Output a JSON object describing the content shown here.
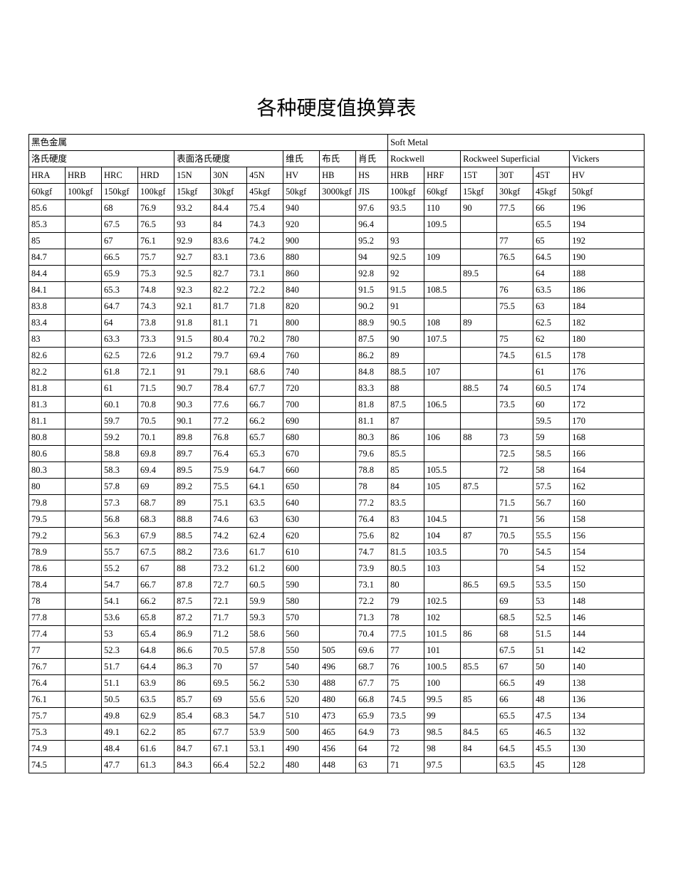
{
  "title": "各种硬度值换算表",
  "colors": {
    "background": "#ffffff",
    "text": "#000000",
    "border": "#000000"
  },
  "typography": {
    "title_fontsize_pt": 21,
    "body_fontsize_pt": 9.5,
    "font_family": "SimSun"
  },
  "header": {
    "row1": {
      "left": "黑色金属",
      "right": "Soft    Metal"
    },
    "row2": [
      "洛氏硬度",
      "表面洛氏硬度",
      "维氏",
      "布氏",
      "肖氏",
      "Rockwell",
      "Rockweel Superficial",
      "Vickers"
    ],
    "row3": [
      "HRA",
      "HRB",
      "HRC",
      "HRD",
      "15N",
      "30N",
      "45N",
      "HV",
      "HB",
      "HS",
      "HRB",
      "HRF",
      "15T",
      "30T",
      "45T",
      "HV"
    ],
    "row4": [
      "60kgf",
      "100kgf",
      "150kgf",
      "100kgf",
      "15kgf",
      "30kgf",
      "45kgf",
      "50kgf",
      "3000kgf",
      "JIS",
      "100kgf",
      "60kgf",
      "15kgf",
      "30kgf",
      "45kgf",
      "50kgf"
    ]
  },
  "columns": [
    "HRA",
    "HRB",
    "HRC",
    "HRD",
    "15N",
    "30N",
    "45N",
    "HV",
    "HB",
    "HS",
    "HRB2",
    "HRF",
    "15T",
    "30T",
    "45T",
    "HV2"
  ],
  "rows": [
    [
      "85.6",
      "",
      "68",
      "76.9",
      "93.2",
      "84.4",
      "75.4",
      "940",
      "",
      "97.6",
      "93.5",
      "110",
      "90",
      "77.5",
      "66",
      "196"
    ],
    [
      "85.3",
      "",
      "67.5",
      "76.5",
      "93",
      "84",
      "74.3",
      "920",
      "",
      "96.4",
      "",
      "109.5",
      "",
      "",
      "65.5",
      "194"
    ],
    [
      "85",
      "",
      "67",
      "76.1",
      "92.9",
      "83.6",
      "74.2",
      "900",
      "",
      "95.2",
      "93",
      "",
      "",
      "77",
      "65",
      "192"
    ],
    [
      "84.7",
      "",
      "66.5",
      "75.7",
      "92.7",
      "83.1",
      "73.6",
      "880",
      "",
      "94",
      "92.5",
      "109",
      "",
      "76.5",
      "64.5",
      "190"
    ],
    [
      "84.4",
      "",
      "65.9",
      "75.3",
      "92.5",
      "82.7",
      "73.1",
      "860",
      "",
      "92.8",
      "92",
      "",
      "89.5",
      "",
      "64",
      "188"
    ],
    [
      "84.1",
      "",
      "65.3",
      "74.8",
      "92.3",
      "82.2",
      "72.2",
      "840",
      "",
      "91.5",
      "91.5",
      "108.5",
      "",
      "76",
      "63.5",
      "186"
    ],
    [
      "83.8",
      "",
      "64.7",
      "74.3",
      "92.1",
      "81.7",
      "71.8",
      "820",
      "",
      "90.2",
      "91",
      "",
      "",
      "75.5",
      "63",
      "184"
    ],
    [
      "83.4",
      "",
      "64",
      "73.8",
      "91.8",
      "81.1",
      "71",
      "800",
      "",
      "88.9",
      "90.5",
      "108",
      "89",
      "",
      "62.5",
      "182"
    ],
    [
      "83",
      "",
      "63.3",
      "73.3",
      "91.5",
      "80.4",
      "70.2",
      "780",
      "",
      "87.5",
      "90",
      "107.5",
      "",
      "75",
      "62",
      "180"
    ],
    [
      "82.6",
      "",
      "62.5",
      "72.6",
      "91.2",
      "79.7",
      "69.4",
      "760",
      "",
      "86.2",
      "89",
      "",
      "",
      "74.5",
      "61.5",
      "178"
    ],
    [
      "82.2",
      "",
      "61.8",
      "72.1",
      "91",
      "79.1",
      "68.6",
      "740",
      "",
      "84.8",
      "88.5",
      "107",
      "",
      "",
      "61",
      "176"
    ],
    [
      "81.8",
      "",
      "61",
      "71.5",
      "90.7",
      "78.4",
      "67.7",
      "720",
      "",
      "83.3",
      "88",
      "",
      "88.5",
      "74",
      "60.5",
      "174"
    ],
    [
      "81.3",
      "",
      "60.1",
      "70.8",
      "90.3",
      "77.6",
      "66.7",
      "700",
      "",
      "81.8",
      "87.5",
      "106.5",
      "",
      "73.5",
      "60",
      "172"
    ],
    [
      "81.1",
      "",
      "59.7",
      "70.5",
      "90.1",
      "77.2",
      "66.2",
      "690",
      "",
      "81.1",
      "87",
      "",
      "",
      "",
      "59.5",
      "170"
    ],
    [
      "80.8",
      "",
      "59.2",
      "70.1",
      "89.8",
      "76.8",
      "65.7",
      "680",
      "",
      "80.3",
      "86",
      "106",
      "88",
      "73",
      "59",
      "168"
    ],
    [
      "80.6",
      "",
      "58.8",
      "69.8",
      "89.7",
      "76.4",
      "65.3",
      "670",
      "",
      "79.6",
      "85.5",
      "",
      "",
      "72.5",
      "58.5",
      "166"
    ],
    [
      "80.3",
      "",
      "58.3",
      "69.4",
      "89.5",
      "75.9",
      "64.7",
      "660",
      "",
      "78.8",
      "85",
      "105.5",
      "",
      "72",
      "58",
      "164"
    ],
    [
      "80",
      "",
      "57.8",
      "69",
      "89.2",
      "75.5",
      "64.1",
      "650",
      "",
      "78",
      "84",
      "105",
      "87.5",
      "",
      "57.5",
      "162"
    ],
    [
      "79.8",
      "",
      "57.3",
      "68.7",
      "89",
      "75.1",
      "63.5",
      "640",
      "",
      "77.2",
      "83.5",
      "",
      "",
      "71.5",
      "56.7",
      "160"
    ],
    [
      "79.5",
      "",
      "56.8",
      "68.3",
      "88.8",
      "74.6",
      "63",
      "630",
      "",
      "76.4",
      "83",
      "104.5",
      "",
      "71",
      "56",
      "158"
    ],
    [
      "79.2",
      "",
      "56.3",
      "67.9",
      "88.5",
      "74.2",
      "62.4",
      "620",
      "",
      "75.6",
      "82",
      "104",
      "87",
      "70.5",
      "55.5",
      "156"
    ],
    [
      "78.9",
      "",
      "55.7",
      "67.5",
      "88.2",
      "73.6",
      "61.7",
      "610",
      "",
      "74.7",
      "81.5",
      "103.5",
      "",
      "70",
      "54.5",
      "154"
    ],
    [
      "78.6",
      "",
      "55.2",
      "67",
      "88",
      "73.2",
      "61.2",
      "600",
      "",
      "73.9",
      "80.5",
      "103",
      "",
      "",
      "54",
      "152"
    ],
    [
      "78.4",
      "",
      "54.7",
      "66.7",
      "87.8",
      "72.7",
      "60.5",
      "590",
      "",
      "73.1",
      "80",
      "",
      "86.5",
      "69.5",
      "53.5",
      "150"
    ],
    [
      "78",
      "",
      "54.1",
      "66.2",
      "87.5",
      "72.1",
      "59.9",
      "580",
      "",
      "72.2",
      "79",
      "102.5",
      "",
      "69",
      "53",
      "148"
    ],
    [
      "77.8",
      "",
      "53.6",
      "65.8",
      "87.2",
      "71.7",
      "59.3",
      "570",
      "",
      "71.3",
      "78",
      "102",
      "",
      "68.5",
      "52.5",
      "146"
    ],
    [
      "77.4",
      "",
      "53",
      "65.4",
      "86.9",
      "71.2",
      "58.6",
      "560",
      "",
      "70.4",
      "77.5",
      "101.5",
      "86",
      "68",
      "51.5",
      "144"
    ],
    [
      "77",
      "",
      "52.3",
      "64.8",
      "86.6",
      "70.5",
      "57.8",
      "550",
      "505",
      "69.6",
      "77",
      "101",
      "",
      "67.5",
      "51",
      "142"
    ],
    [
      "76.7",
      "",
      "51.7",
      "64.4",
      "86.3",
      "70",
      "57",
      "540",
      "496",
      "68.7",
      "76",
      "100.5",
      "85.5",
      "67",
      "50",
      "140"
    ],
    [
      "76.4",
      "",
      "51.1",
      "63.9",
      "86",
      "69.5",
      "56.2",
      "530",
      "488",
      "67.7",
      "75",
      "100",
      "",
      "66.5",
      "49",
      "138"
    ],
    [
      "76.1",
      "",
      "50.5",
      "63.5",
      "85.7",
      "69",
      "55.6",
      "520",
      "480",
      "66.8",
      "74.5",
      "99.5",
      "85",
      "66",
      "48",
      "136"
    ],
    [
      "75.7",
      "",
      "49.8",
      "62.9",
      "85.4",
      "68.3",
      "54.7",
      "510",
      "473",
      "65.9",
      "73.5",
      "99",
      "",
      "65.5",
      "47.5",
      "134"
    ],
    [
      "75.3",
      "",
      "49.1",
      "62.2",
      "85",
      "67.7",
      "53.9",
      "500",
      "465",
      "64.9",
      "73",
      "98.5",
      "84.5",
      "65",
      "46.5",
      "132"
    ],
    [
      "74.9",
      "",
      "48.4",
      "61.6",
      "84.7",
      "67.1",
      "53.1",
      "490",
      "456",
      "64",
      "72",
      "98",
      "84",
      "64.5",
      "45.5",
      "130"
    ],
    [
      "74.5",
      "",
      "47.7",
      "61.3",
      "84.3",
      "66.4",
      "52.2",
      "480",
      "448",
      "63",
      "71",
      "97.5",
      "",
      "63.5",
      "45",
      "128"
    ]
  ]
}
